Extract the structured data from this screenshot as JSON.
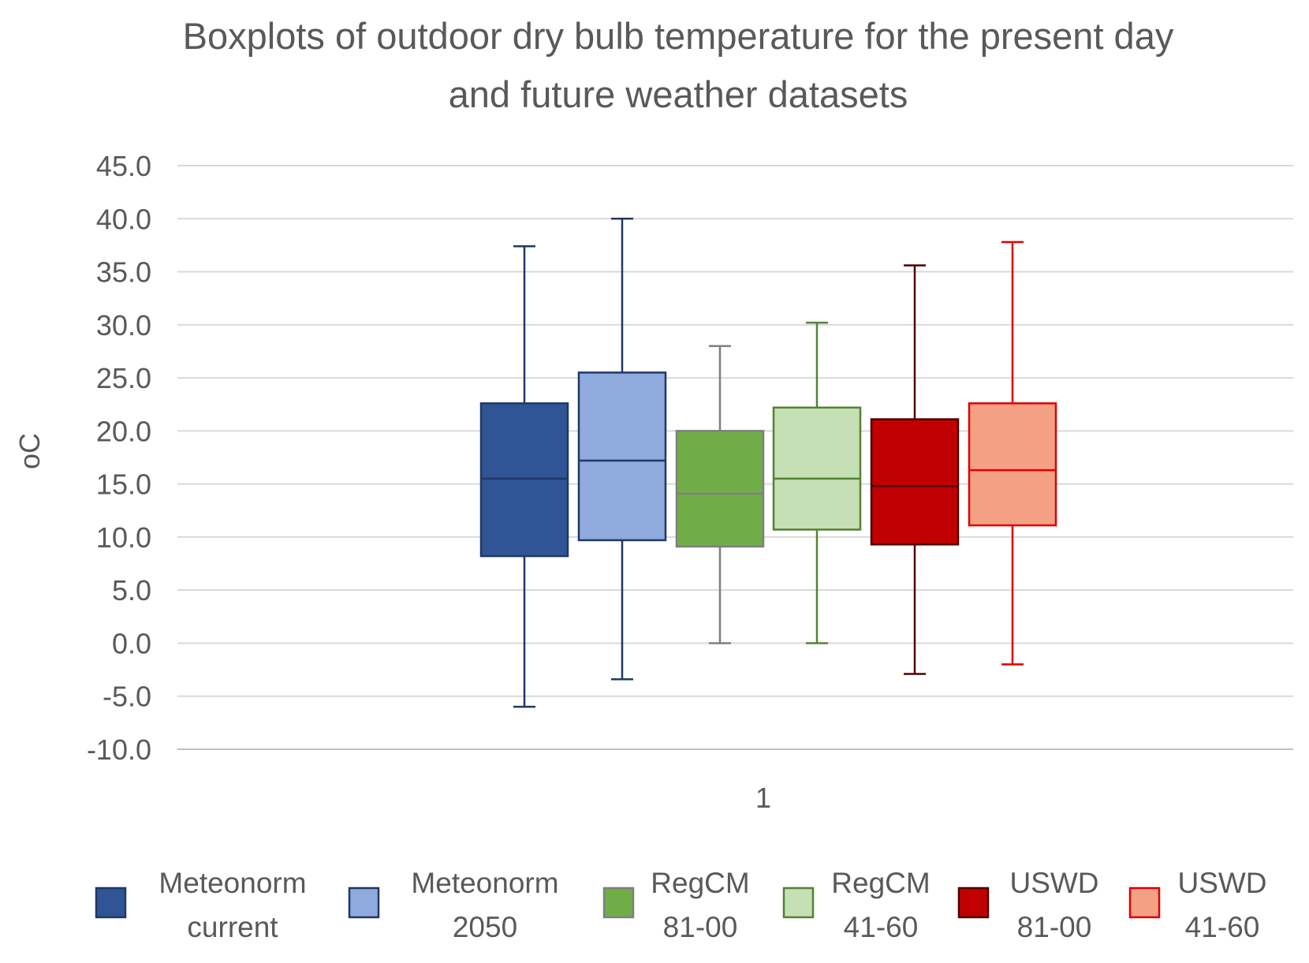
{
  "chart_data": {
    "type": "boxplot",
    "title_lines": [
      "Boxplots of outdoor dry bulb temperature for the present day",
      "and future weather datasets"
    ],
    "ylabel": "oC",
    "xlabel": "",
    "categories": [
      "1"
    ],
    "ylim": [
      -10,
      45
    ],
    "ytick_step": 5,
    "yticks": [
      "-10.0",
      "-5.0",
      "0.0",
      "5.0",
      "10.0",
      "15.0",
      "20.0",
      "25.0",
      "30.0",
      "35.0",
      "40.0",
      "45.0"
    ],
    "grid": true,
    "legend_position": "bottom",
    "series": [
      {
        "name": "Meteonorm current",
        "legend_lines": [
          "Meteonorm",
          "current"
        ],
        "min": -6.0,
        "q1": 8.2,
        "median": 15.5,
        "q3": 22.6,
        "max": 37.4,
        "fill": "#2f5597",
        "stroke": "#203864",
        "whisker": "#203864",
        "median_color": "#203864"
      },
      {
        "name": "Meteonorm 2050",
        "legend_lines": [
          "Meteonorm",
          "2050"
        ],
        "min": -3.4,
        "q1": 9.7,
        "median": 17.2,
        "q3": 25.5,
        "max": 40.0,
        "fill": "#8faadc",
        "stroke": "#203864",
        "whisker": "#203864",
        "median_color": "#203864"
      },
      {
        "name": "RegCM 81-00",
        "legend_lines": [
          "RegCM",
          "81-00"
        ],
        "min": 0.0,
        "q1": 9.1,
        "median": 14.1,
        "q3": 20.0,
        "max": 28.0,
        "fill": "#70ad47",
        "stroke": "#7f7f7f",
        "whisker": "#7f7f7f",
        "median_color": "#7f7f7f"
      },
      {
        "name": "RegCM 41-60",
        "legend_lines": [
          "RegCM",
          "41-60"
        ],
        "min": 0.0,
        "q1": 10.7,
        "median": 15.5,
        "q3": 22.2,
        "max": 30.2,
        "fill": "#c5e0b4",
        "stroke": "#548235",
        "whisker": "#548235",
        "median_color": "#548235"
      },
      {
        "name": "USWD 81-00",
        "legend_lines": [
          "USWD",
          "81-00"
        ],
        "min": -2.9,
        "q1": 9.3,
        "median": 14.8,
        "q3": 21.1,
        "max": 35.6,
        "fill": "#c00000",
        "stroke": "#4d0000",
        "whisker": "#4d0000",
        "median_color": "#4d0000"
      },
      {
        "name": "USWD 41-60",
        "legend_lines": [
          "USWD",
          "41-60"
        ],
        "min": -2.0,
        "q1": 11.1,
        "median": 16.3,
        "q3": 22.6,
        "max": 37.8,
        "fill": "#f4a084",
        "stroke": "#e00000",
        "whisker": "#e00000",
        "median_color": "#e00000"
      }
    ]
  },
  "colors": {
    "grid": "#d9d9d9",
    "text": "#595959",
    "title": "#595959"
  }
}
